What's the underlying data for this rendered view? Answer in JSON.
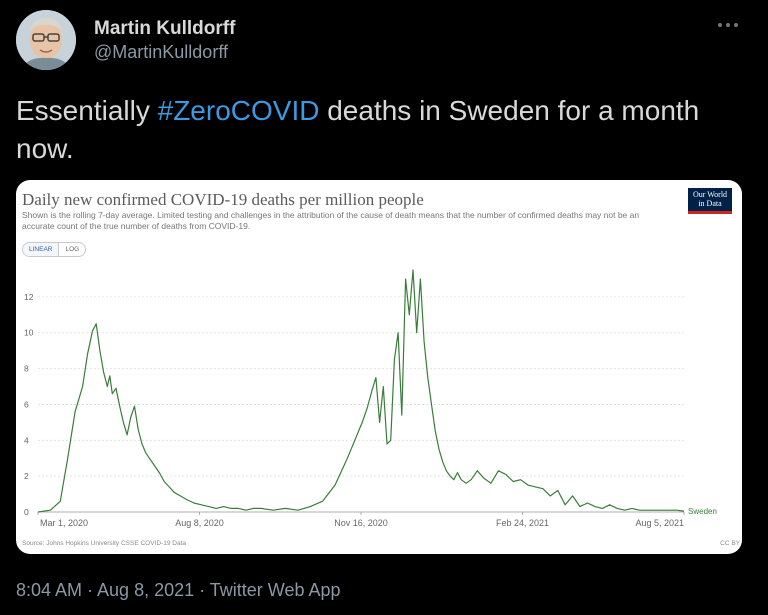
{
  "tweet": {
    "display_name": "Martin Kulldorff",
    "handle": "@MartinKulldorff",
    "more_icon": "more-dots-icon",
    "text_before": "Essentially ",
    "hashtag": "#ZeroCOVID",
    "text_after": " deaths in Sweden for a month now.",
    "hashtag_color": "#3b9ae1",
    "timestamp": "8:04 AM · Aug 8, 2021 · Twitter Web App"
  },
  "chart_data": {
    "type": "line",
    "title": "Daily new confirmed COVID-19 deaths per million people",
    "subtitle": "Shown is the rolling 7-day average. Limited testing and challenges in the attribution of the cause of death means that the number of confirmed deaths may not be an accurate count of the true number of deaths from COVID-19.",
    "logo_line1": "Our World",
    "logo_line2": "in Data",
    "toggle_linear": "LINEAR",
    "toggle_log": "LOG",
    "xlabel": "",
    "ylabel": "",
    "ylim": [
      0,
      13.5
    ],
    "y_ticks": [
      "0",
      "2",
      "4",
      "6",
      "8",
      "10",
      "12"
    ],
    "x_ticks": [
      "Mar 1, 2020",
      "Aug 8, 2020",
      "Nov 16, 2020",
      "Feb 24, 2021",
      "Aug 5, 2021"
    ],
    "x_range_days": [
      0,
      522
    ],
    "series": [
      {
        "name": "Sweden",
        "color": "#3a7d3a",
        "days": [
          0,
          10,
          18,
          24,
          30,
          36,
          40,
          44,
          47,
          50,
          53,
          56,
          58,
          60,
          63,
          66,
          69,
          72,
          75,
          78,
          81,
          84,
          87,
          90,
          94,
          98,
          102,
          106,
          110,
          115,
          120,
          126,
          132,
          138,
          144,
          150,
          156,
          162,
          168,
          174,
          180,
          190,
          200,
          210,
          220,
          230,
          240,
          250,
          256,
          262,
          266,
          270,
          273,
          276,
          279,
          282,
          285,
          288,
          291,
          294,
          297,
          300,
          303,
          306,
          309,
          312,
          315,
          318,
          321,
          324,
          327,
          330,
          333,
          336,
          339,
          342,
          346,
          350,
          355,
          360,
          366,
          372,
          378,
          384,
          390,
          396,
          402,
          408,
          414,
          420,
          426,
          432,
          438,
          444,
          450,
          456,
          462,
          468,
          474,
          480,
          486,
          492,
          498,
          504,
          510,
          516,
          522
        ],
        "values": [
          0,
          0.1,
          0.6,
          3.0,
          5.6,
          7.0,
          8.8,
          10.1,
          10.5,
          9.0,
          7.8,
          7.0,
          7.6,
          6.6,
          6.9,
          5.9,
          5.0,
          4.3,
          5.3,
          5.9,
          4.6,
          3.8,
          3.3,
          3.0,
          2.6,
          2.2,
          1.7,
          1.4,
          1.1,
          0.9,
          0.7,
          0.5,
          0.4,
          0.3,
          0.2,
          0.3,
          0.2,
          0.2,
          0.1,
          0.2,
          0.2,
          0.1,
          0.2,
          0.1,
          0.3,
          0.6,
          1.5,
          3.0,
          4.0,
          5.0,
          5.8,
          6.8,
          7.5,
          5.0,
          7.0,
          3.8,
          4.0,
          8.5,
          10.0,
          5.4,
          13.0,
          11.0,
          13.5,
          10.0,
          13.0,
          9.5,
          7.5,
          6.0,
          4.5,
          3.5,
          2.8,
          2.3,
          2.0,
          1.8,
          2.2,
          1.8,
          1.6,
          1.8,
          2.3,
          1.9,
          1.6,
          2.3,
          2.1,
          1.7,
          1.8,
          1.5,
          1.4,
          1.3,
          0.9,
          1.2,
          0.4,
          0.9,
          0.3,
          0.5,
          0.3,
          0.2,
          0.4,
          0.2,
          0.1,
          0.2,
          0.1,
          0.1,
          0.1,
          0.1,
          0.1,
          0.1,
          0.05
        ]
      }
    ],
    "source": "Source: Johns Hopkins University CSSE COVID-19 Data",
    "license": "CC BY"
  }
}
